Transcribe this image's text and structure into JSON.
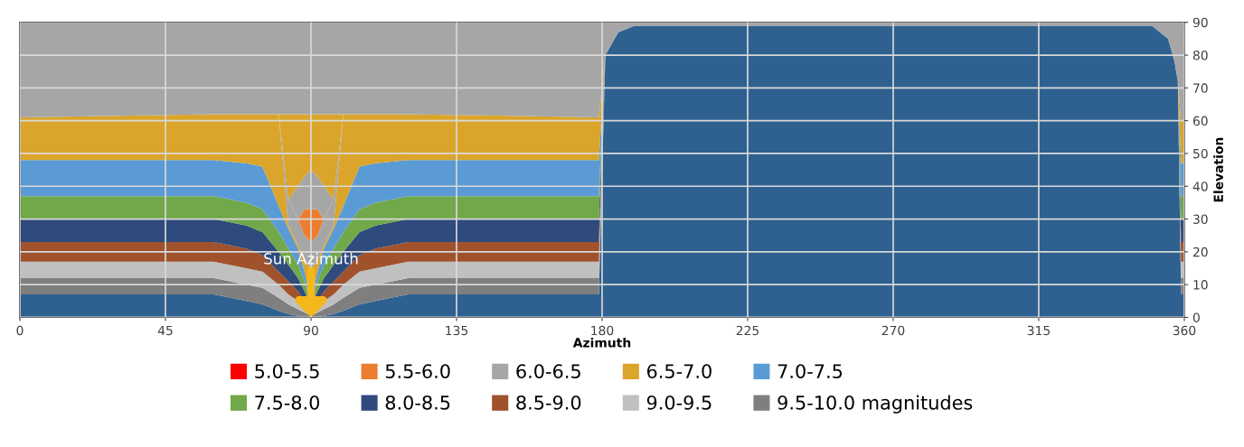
{
  "chart_data": {
    "type": "area",
    "stacked": true,
    "xlabel": "Azimuth",
    "ylabel": "Elevation",
    "x": [
      0,
      60,
      70,
      75,
      80,
      83,
      86,
      88,
      90,
      92,
      94,
      97,
      100,
      105,
      110,
      120,
      179,
      181,
      185,
      190,
      350,
      355,
      357,
      358,
      359,
      360
    ],
    "xlim": [
      0,
      360
    ],
    "xticks": [
      0,
      45,
      90,
      135,
      180,
      225,
      270,
      315,
      360
    ],
    "ylim": [
      0,
      90
    ],
    "yticks": [
      0,
      10,
      20,
      30,
      40,
      50,
      60,
      70,
      80,
      90
    ],
    "grid": true,
    "legend": "bottom",
    "annotations": [
      {
        "text": "Sun Azimuth",
        "x": 90,
        "y": 0
      }
    ],
    "series": [
      {
        "color": "#2e6190",
        "values": [
          7,
          7,
          5,
          4,
          2,
          1,
          0.5,
          0,
          0,
          0,
          0.5,
          1,
          2,
          4,
          5,
          7,
          7,
          80,
          87,
          89,
          89,
          85,
          78,
          72,
          7,
          7
        ]
      },
      {
        "name": "9.5-10.0 magnitudes",
        "color": "#7f7f7f",
        "values": [
          5,
          5,
          5,
          5,
          4,
          3,
          2,
          1.5,
          0.5,
          1.5,
          2,
          3,
          4,
          5,
          5,
          5,
          5,
          0,
          null,
          null,
          null,
          null,
          null,
          0,
          5,
          5
        ]
      },
      {
        "name": "9.0-9.5",
        "color": "#c0c0c0",
        "values": [
          5,
          5,
          5,
          5,
          4,
          3,
          2.5,
          1.5,
          0.5,
          1.5,
          2.5,
          3,
          4,
          5,
          5,
          5,
          5,
          0,
          null,
          null,
          null,
          null,
          null,
          0,
          5,
          5
        ]
      },
      {
        "name": "8.5-9.0",
        "color": "#a0522d",
        "values": [
          6,
          6,
          6,
          5,
          4,
          4,
          3,
          2,
          1,
          2,
          3,
          4,
          4,
          5,
          6,
          6,
          6,
          0,
          null,
          null,
          null,
          null,
          null,
          0,
          6,
          6
        ]
      },
      {
        "name": "8.0-8.5",
        "color": "#2f4a7c",
        "values": [
          7,
          7,
          7,
          7,
          6,
          5,
          4,
          3,
          1,
          3,
          4,
          5,
          6,
          7,
          7,
          7,
          7,
          0,
          null,
          null,
          null,
          null,
          null,
          0,
          7,
          7
        ]
      },
      {
        "name": "7.5-8.0",
        "color": "#70a84a",
        "values": [
          7,
          7,
          7,
          7,
          6,
          5,
          4,
          3,
          1,
          3,
          4,
          5,
          6,
          7,
          7,
          7,
          7,
          0,
          null,
          null,
          null,
          null,
          null,
          0,
          7,
          7
        ]
      },
      {
        "name": "7.0-7.5",
        "color": "#5b9bd5",
        "values": [
          11,
          11,
          12,
          13,
          8,
          6,
          5,
          3,
          1,
          3,
          5,
          6,
          8,
          13,
          12,
          11,
          11,
          0,
          null,
          null,
          null,
          null,
          null,
          0,
          10,
          10
        ]
      },
      {
        "name": "6.5-7.0",
        "color": "#daa52a",
        "values": [
          13,
          14,
          15,
          16,
          28,
          1,
          1,
          3,
          10,
          3,
          1,
          1,
          28,
          16,
          15,
          14,
          13,
          0,
          null,
          null,
          null,
          null,
          null,
          0,
          13,
          13
        ]
      },
      {
        "name": "6.0-6.5",
        "color": "#a6a6a6",
        "values": [
          null,
          null,
          null,
          null,
          0,
          8,
          8,
          8,
          8,
          8,
          8,
          8,
          0,
          null,
          null,
          null,
          null,
          null,
          null,
          null,
          null,
          null,
          null,
          null,
          null,
          null
        ]
      },
      {
        "name": "5.5-6.0",
        "color": "#ed7d31",
        "values": [
          null,
          null,
          null,
          null,
          null,
          null,
          0,
          8,
          10,
          8,
          0,
          null,
          null,
          null,
          null,
          null,
          null,
          null,
          null,
          null,
          null,
          null,
          null,
          null,
          null,
          null
        ]
      },
      {
        "color": "#a6a6a6",
        "values": [
          null,
          null,
          null,
          null,
          null,
          0,
          10,
          10,
          12,
          10,
          10,
          0,
          null,
          null,
          null,
          null,
          null,
          null,
          null,
          null,
          null,
          null,
          null,
          null,
          null,
          null
        ]
      },
      {
        "color": "#daa52a",
        "values": [
          null,
          null,
          null,
          null,
          0,
          26,
          22,
          19,
          17,
          19,
          22,
          26,
          0,
          null,
          null,
          null,
          null,
          null,
          null,
          null,
          null,
          null,
          null,
          null,
          null,
          null
        ]
      },
      {
        "color": "#a6a6a6",
        "values": [
          29,
          28,
          28,
          28,
          28,
          28,
          28,
          28,
          28,
          28,
          28,
          28,
          28,
          28,
          28,
          28,
          29,
          10,
          3,
          1,
          1,
          5,
          12,
          18,
          30,
          30
        ]
      },
      {
        "name": "5.0-5.5",
        "color": "#ff0000",
        "values": [
          null,
          null,
          null,
          null,
          null,
          null,
          null,
          null,
          null,
          null,
          null,
          null,
          null,
          null,
          null,
          null,
          null,
          null,
          null,
          null,
          null,
          null,
          null,
          null,
          null,
          null
        ]
      }
    ]
  }
}
